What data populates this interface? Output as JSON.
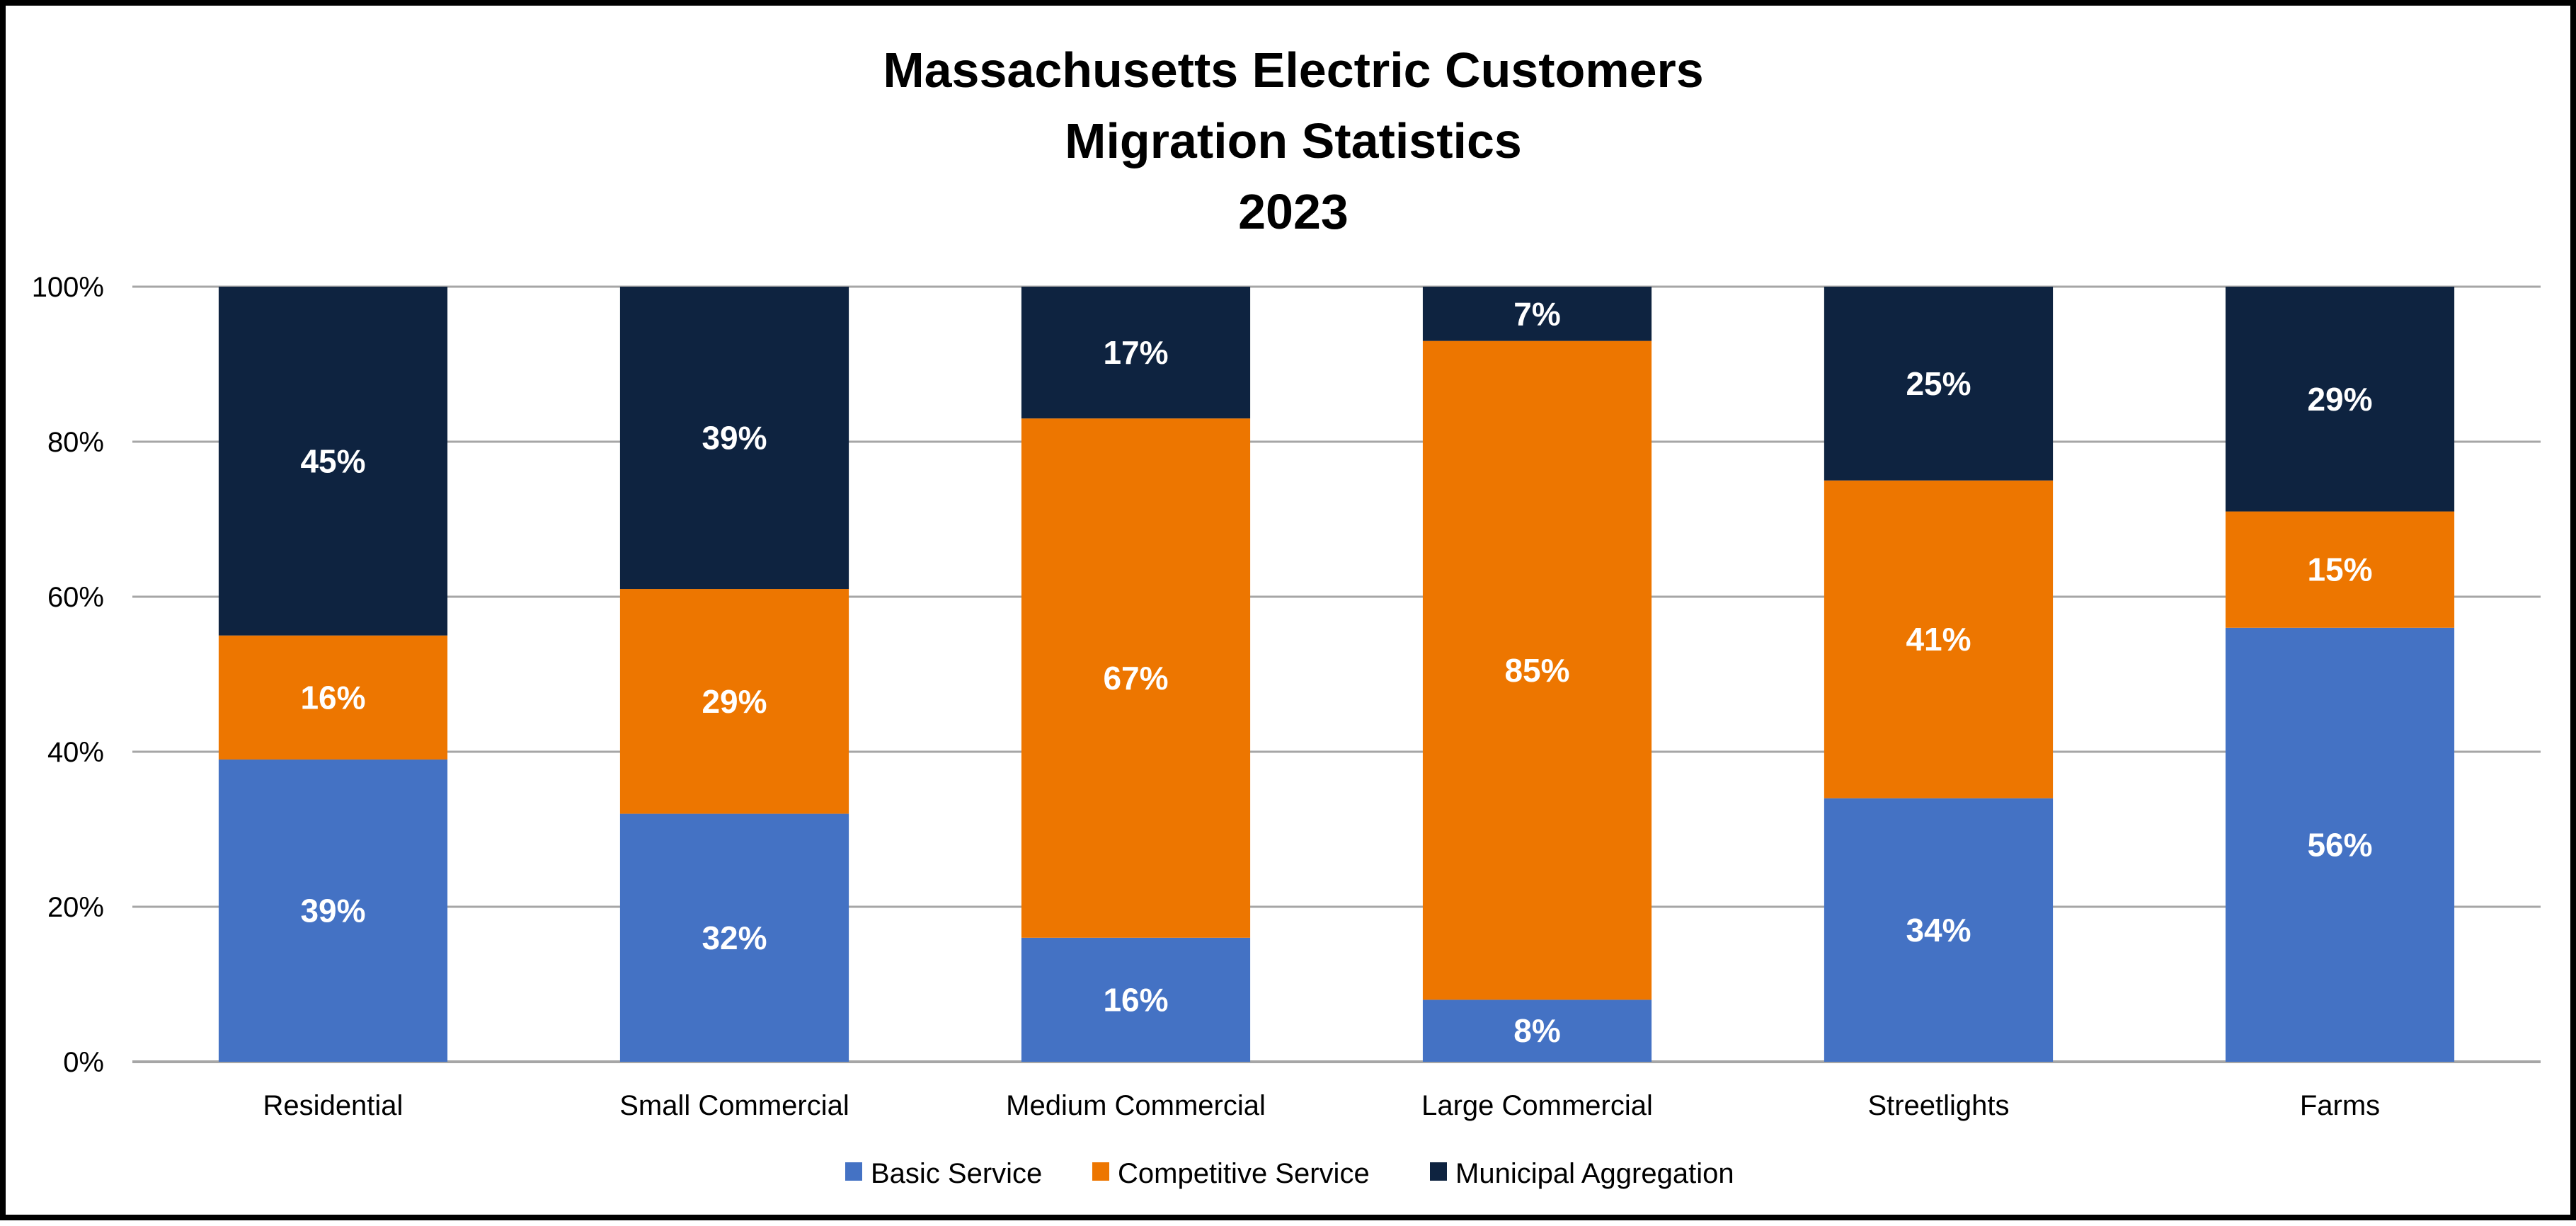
{
  "chart_data": {
    "type": "bar",
    "stacked": true,
    "title": [
      "Massachusetts Electric Customers",
      "Migration Statistics",
      "2023"
    ],
    "xlabel": "",
    "ylabel": "",
    "ylim": [
      0,
      100
    ],
    "yticks": [
      "0%",
      "20%",
      "40%",
      "60%",
      "80%",
      "100%"
    ],
    "ytick_values": [
      0,
      20,
      40,
      60,
      80,
      100
    ],
    "grid": true,
    "legend_position": "bottom",
    "categories": [
      "Residential",
      "Small Commercial",
      "Medium Commercial",
      "Large Commercial",
      "Streetlights",
      "Farms"
    ],
    "series": [
      {
        "name": "Basic Service",
        "color": "#4472c4",
        "values": [
          39,
          32,
          16,
          8,
          34,
          56
        ],
        "labels": [
          "39%",
          "32%",
          "16%",
          "8%",
          "34%",
          "56%"
        ]
      },
      {
        "name": "Competitive Service",
        "color": "#ed7600",
        "values": [
          16,
          29,
          67,
          85,
          41,
          15
        ],
        "labels": [
          "16%",
          "29%",
          "67%",
          "85%",
          "41%",
          "15%"
        ]
      },
      {
        "name": "Municipal Aggregation",
        "color": "#0e2340",
        "values": [
          45,
          39,
          17,
          7,
          25,
          29
        ],
        "labels": [
          "45%",
          "39%",
          "17%",
          "7%",
          "25%",
          "29%"
        ]
      }
    ]
  }
}
